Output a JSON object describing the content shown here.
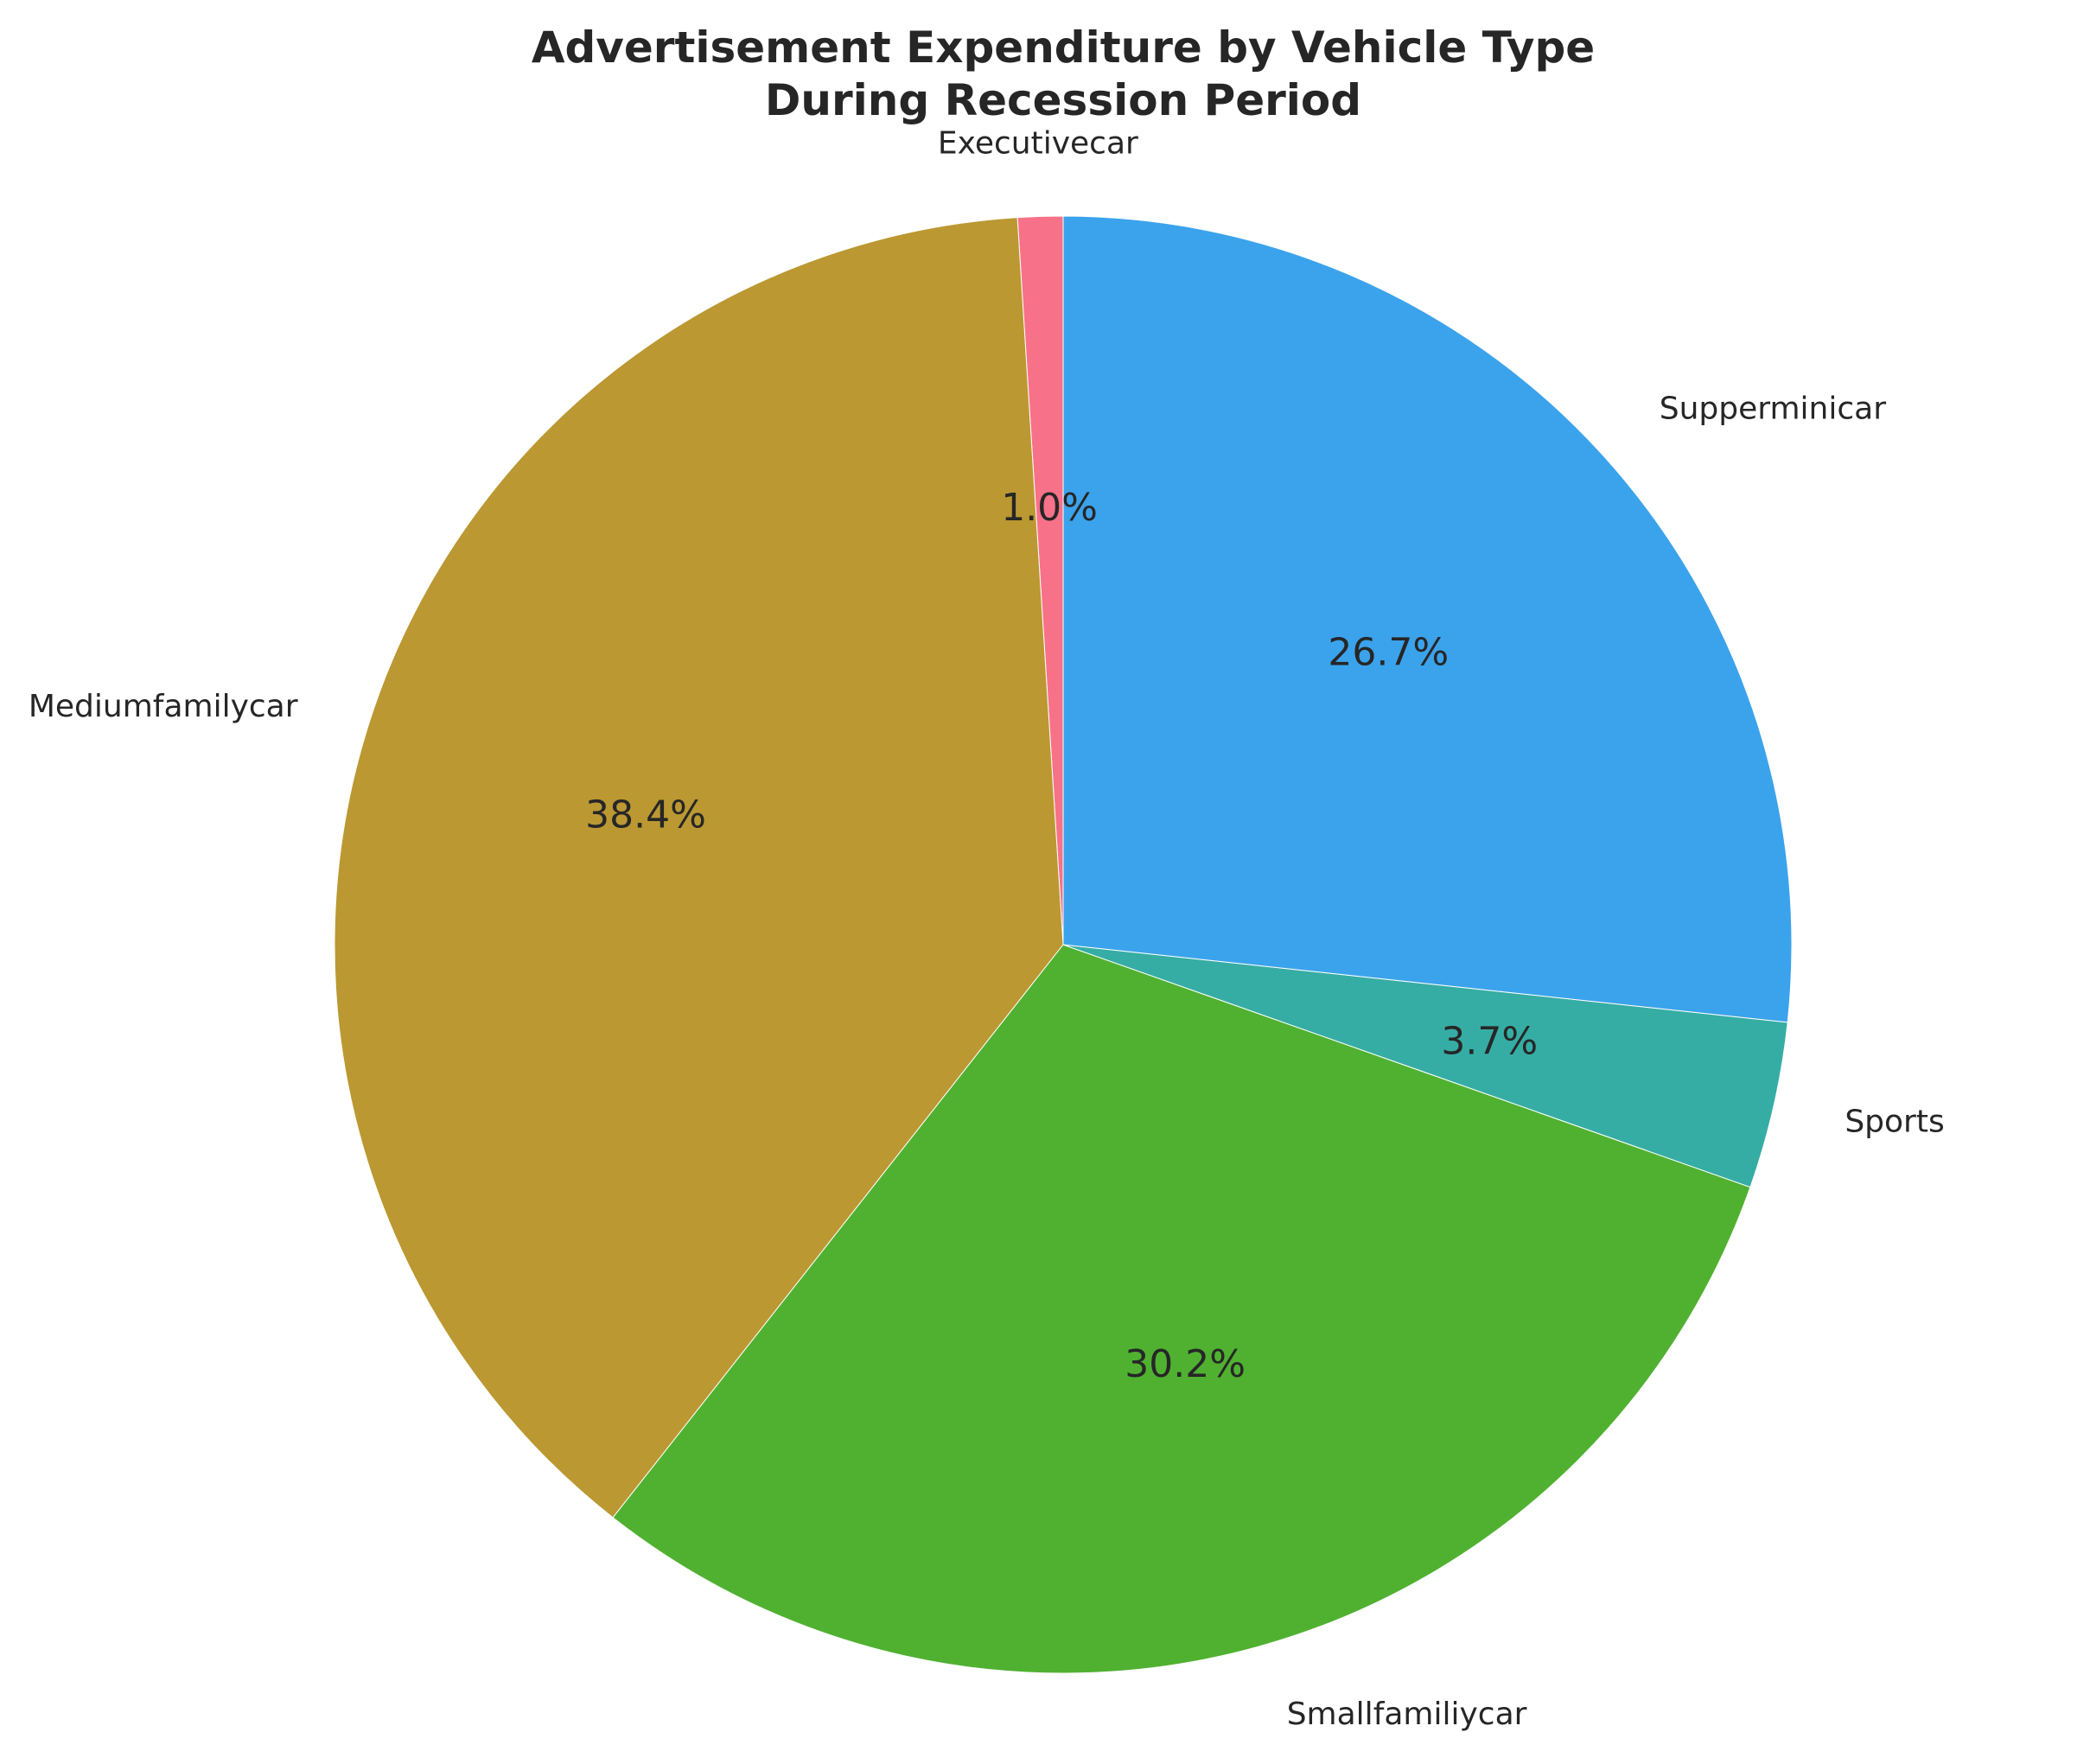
{
  "chart_data": {
    "type": "pie",
    "title_lines": [
      "Advertisement Expenditure by Vehicle Type",
      "During Recession Period"
    ],
    "start_angle_deg": 90,
    "direction": "counterclockwise",
    "slices": [
      {
        "label": "Executivecar",
        "value": 1.0,
        "pct_text": "1.0%",
        "color": "#f77189"
      },
      {
        "label": "Mediumfamilycar",
        "value": 38.4,
        "pct_text": "38.4%",
        "color": "#bb9832"
      },
      {
        "label": "Smallfamiliycar",
        "value": 30.2,
        "pct_text": "30.2%",
        "color": "#50b131"
      },
      {
        "label": "Sports",
        "value": 3.7,
        "pct_text": "3.7%",
        "color": "#36ada4"
      },
      {
        "label": "Supperminicar",
        "value": 26.7,
        "pct_text": "26.7%",
        "color": "#3ba3ec"
      }
    ]
  }
}
